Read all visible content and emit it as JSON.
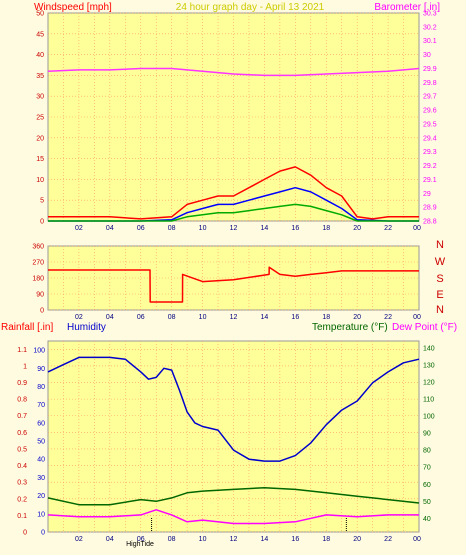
{
  "header": {
    "windspeed_label": "Windspeed [mph]",
    "title": "24 hour graph day - April 13 2021",
    "barometer_label": "Barometer [.in]"
  },
  "lower_header": {
    "rainfall_label": "Rainfall [.in]",
    "humidity_label": "Humidity",
    "temperature_label": "Temperature (°F)",
    "dewpoint_label": "Dew Point (°F)"
  },
  "compass": [
    "N",
    "W",
    "S",
    "E",
    "N"
  ],
  "markers": {
    "high_tide_label": "HighTide"
  },
  "colors": {
    "background": "#fffbe0",
    "plot_bg": "#ffff99",
    "grid": "#ff9966",
    "wind_gust": "#ff0000",
    "wind_avg": "#0000ff",
    "wind_low": "#00aa00",
    "barometer": "#ff33ff",
    "direction": "#ff0000",
    "humidity": "#0000cc",
    "temperature": "#006600",
    "dewpoint": "#ff00ff"
  },
  "chart_data": [
    {
      "type": "line",
      "title": "24 hour graph day - April 13 2021",
      "x_ticks": [
        "02",
        "04",
        "06",
        "08",
        "10",
        "12",
        "14",
        "16",
        "18",
        "20",
        "22",
        "00"
      ],
      "y_left": {
        "label": "Windspeed [mph]",
        "ticks": [
          0,
          5,
          10,
          15,
          20,
          25,
          30,
          35,
          40,
          45,
          50
        ],
        "ylim": [
          0,
          50
        ]
      },
      "y_right": {
        "label": "Barometer [.in]",
        "ticks": [
          28.8,
          28.9,
          29.0,
          29.1,
          29.2,
          29.3,
          29.4,
          29.5,
          29.6,
          29.7,
          29.8,
          29.9,
          30.0,
          30.1,
          30.2,
          30.3
        ],
        "ylim": [
          28.8,
          30.3
        ]
      },
      "grid": true,
      "series": [
        {
          "color": "#ff33ff",
          "axis": "right",
          "x": [
            0,
            2,
            4,
            6,
            8,
            10,
            12,
            14,
            16,
            18,
            20,
            22,
            24
          ],
          "values": [
            29.88,
            29.89,
            29.89,
            29.9,
            29.9,
            29.88,
            29.86,
            29.85,
            29.85,
            29.86,
            29.87,
            29.88,
            29.9
          ]
        },
        {
          "color": "#ff0000",
          "axis": "left",
          "x": [
            0,
            2,
            4,
            6,
            8,
            9,
            10,
            11,
            12,
            13,
            14,
            15,
            16,
            17,
            18,
            19,
            20,
            21,
            22,
            23,
            24
          ],
          "values": [
            1,
            1,
            1,
            0.5,
            1,
            4,
            5,
            6,
            6,
            8,
            10,
            12,
            13,
            11,
            8,
            6,
            1,
            0.5,
            1,
            1,
            1
          ]
        },
        {
          "color": "#0000ff",
          "axis": "left",
          "x": [
            0,
            2,
            4,
            6,
            8,
            9,
            10,
            11,
            12,
            13,
            14,
            15,
            16,
            17,
            18,
            19,
            20,
            22,
            24
          ],
          "values": [
            0,
            0,
            0,
            0,
            0.3,
            2,
            3,
            4,
            4,
            5,
            6,
            7,
            8,
            7,
            5,
            3,
            0.3,
            0,
            0
          ]
        },
        {
          "color": "#00aa00",
          "axis": "left",
          "x": [
            0,
            2,
            4,
            6,
            8,
            9,
            10,
            11,
            12,
            13,
            14,
            15,
            16,
            17,
            18,
            19,
            20,
            22,
            24
          ],
          "values": [
            0,
            0,
            0,
            0,
            0,
            1,
            1.5,
            2,
            2,
            2.5,
            3,
            3.5,
            4,
            3.5,
            2.5,
            1.5,
            0,
            0,
            0
          ]
        }
      ]
    },
    {
      "type": "line",
      "x_ticks": [
        "02",
        "04",
        "06",
        "08",
        "10",
        "12",
        "14",
        "16",
        "18",
        "20",
        "22",
        "00"
      ],
      "y_left": {
        "ticks": [
          0,
          90,
          180,
          270,
          360
        ],
        "ylim": [
          0,
          360
        ]
      },
      "grid": true,
      "series": [
        {
          "color": "#ff0000",
          "axis": "left",
          "x": [
            0,
            6.6,
            6.61,
            8.7,
            8.71,
            10,
            12,
            14.3,
            14.31,
            15,
            16,
            17,
            18,
            19,
            20,
            24
          ],
          "values": [
            225,
            225,
            45,
            45,
            200,
            160,
            170,
            200,
            240,
            200,
            190,
            200,
            210,
            220,
            220,
            220
          ]
        }
      ]
    },
    {
      "type": "line",
      "x_ticks": [
        "02",
        "04",
        "06",
        "08",
        "10",
        "12",
        "14",
        "16",
        "18",
        "20",
        "22",
        "00"
      ],
      "y_left": {
        "label": "Rainfall [.in]",
        "ticks": [
          0,
          0.1,
          0.2,
          0.3,
          0.4,
          0.5,
          0.6,
          0.7,
          0.8,
          0.9,
          1,
          1.1
        ],
        "ylim": [
          0,
          1.15
        ]
      },
      "y_left2": {
        "label": "Humidity",
        "ticks": [
          0,
          10,
          20,
          30,
          40,
          50,
          60,
          70,
          80,
          90,
          100
        ],
        "ylim": [
          0,
          105
        ]
      },
      "y_right": {
        "label": "Temperature (°F)",
        "ticks": [
          40,
          50,
          60,
          70,
          80,
          90,
          100,
          110,
          120,
          130,
          140
        ],
        "ylim": [
          32,
          144
        ]
      },
      "grid": true,
      "series": [
        {
          "color": "#0000cc",
          "axis": "left2",
          "x": [
            0,
            1,
            2,
            3,
            4,
            5,
            6,
            6.5,
            7,
            7.5,
            8,
            8.5,
            9,
            9.5,
            10,
            11,
            12,
            13,
            14,
            15,
            16,
            17,
            18,
            19,
            20,
            21,
            22,
            23,
            24
          ],
          "values": [
            88,
            92,
            96,
            96,
            96,
            95,
            88,
            84,
            85,
            90,
            89,
            78,
            66,
            60,
            58,
            56,
            45,
            40,
            39,
            39,
            42,
            49,
            59,
            67,
            72,
            82,
            88,
            93,
            95
          ]
        },
        {
          "color": "#006600",
          "axis": "right",
          "x": [
            0,
            2,
            4,
            6,
            7,
            8,
            9,
            10,
            12,
            14,
            16,
            18,
            20,
            22,
            24
          ],
          "values": [
            52,
            48,
            48,
            51,
            50,
            52,
            55,
            56,
            57,
            58,
            57,
            55,
            53,
            51,
            49
          ]
        },
        {
          "color": "#ff00ff",
          "axis": "right",
          "x": [
            0,
            2,
            4,
            6,
            7,
            8,
            9,
            10,
            12,
            14,
            16,
            18,
            20,
            22,
            24
          ],
          "values": [
            42,
            41,
            41,
            42,
            45,
            42,
            38,
            39,
            37,
            37,
            38,
            42,
            41,
            42,
            42
          ]
        }
      ]
    }
  ]
}
